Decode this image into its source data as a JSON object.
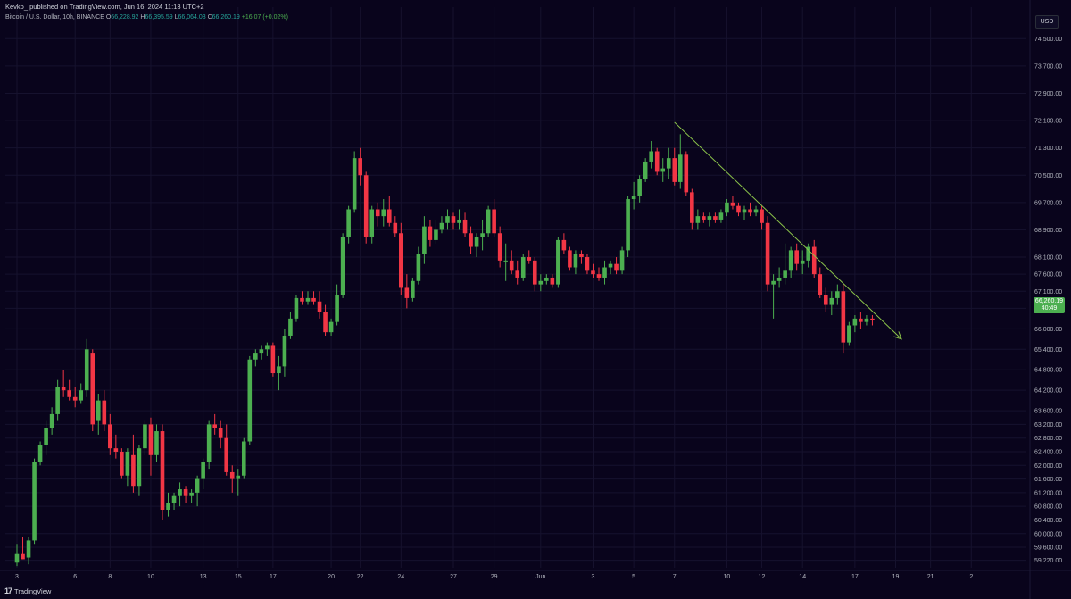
{
  "header": {
    "published": "Kevko_ published on TradingView.com, Jun 16, 2024 11:13 UTC+2",
    "symbol": "Bitcoin / U.S. Dollar, 10h, BINANCE",
    "o_label": "O",
    "o_value": "66,228.92",
    "h_label": "H",
    "h_value": "66,395.59",
    "l_label": "L",
    "l_value": "66,064.03",
    "c_label": "C",
    "c_value": "66,260.19",
    "change": "+16.07 (+0.02%)"
  },
  "currency": "USD",
  "last_price": {
    "value": "66,260.19",
    "countdown": "40:49"
  },
  "footer": {
    "brand": "TradingView",
    "logo": "tradingview-logo"
  },
  "colors": {
    "background": "#09041c",
    "up": "#4caf50",
    "down": "#f23645",
    "trendline": "#8bc34a",
    "grid": "#16122e"
  },
  "chart_data": {
    "type": "candlestick",
    "timeframe": "10h",
    "yscale": "linear",
    "ylim": [
      59000,
      74900
    ],
    "y_ticks": [
      59220,
      59600,
      60000,
      60400,
      60800,
      61200,
      61600,
      62000,
      62400,
      62800,
      63200,
      63600,
      64200,
      64800,
      65400,
      66000,
      66600,
      67100,
      67600,
      68100,
      68900,
      69700,
      70500,
      71300,
      72100,
      72900,
      73700,
      74500
    ],
    "y_tick_labels": [
      "59,220.00",
      "59,600.00",
      "60,000.00",
      "60,400.00",
      "60,800.00",
      "61,200.00",
      "61,600.00",
      "62,000.00",
      "62,400.00",
      "62,800.00",
      "63,200.00",
      "63,600.00",
      "64,200.00",
      "64,800.00",
      "65,400.00",
      "66,000.00",
      "66,600.00",
      "67,100.00",
      "67,600.00",
      "68,100.00",
      "68,900.00",
      "69,700.00",
      "70,500.00",
      "71,300.00",
      "72,100.00",
      "72,900.00",
      "73,700.00",
      "74,500.00"
    ],
    "x_ticks": [
      {
        "label": "3",
        "bar": 0
      },
      {
        "label": "6",
        "bar": 10
      },
      {
        "label": "8",
        "bar": 16
      },
      {
        "label": "10",
        "bar": 23
      },
      {
        "label": "13",
        "bar": 32
      },
      {
        "label": "15",
        "bar": 38
      },
      {
        "label": "17",
        "bar": 44
      },
      {
        "label": "20",
        "bar": 54
      },
      {
        "label": "22",
        "bar": 59
      },
      {
        "label": "24",
        "bar": 66
      },
      {
        "label": "27",
        "bar": 75
      },
      {
        "label": "29",
        "bar": 82
      },
      {
        "label": "Jun",
        "bar": 90
      },
      {
        "label": "3",
        "bar": 99
      },
      {
        "label": "5",
        "bar": 106
      },
      {
        "label": "7",
        "bar": 113
      },
      {
        "label": "10",
        "bar": 122
      },
      {
        "label": "12",
        "bar": 128
      },
      {
        "label": "14",
        "bar": 135
      },
      {
        "label": "17",
        "bar": 144
      },
      {
        "label": "19",
        "bar": 151
      },
      {
        "label": "21",
        "bar": 157
      },
      {
        "label": "2",
        "bar": 164
      }
    ],
    "ohlc": [
      [
        59150,
        59700,
        59050,
        59400
      ],
      [
        59400,
        59900,
        59250,
        59250
      ],
      [
        59300,
        59900,
        59100,
        59800
      ],
      [
        59800,
        62200,
        59700,
        62100
      ],
      [
        62100,
        62700,
        62000,
        62600
      ],
      [
        62600,
        63300,
        62300,
        63100
      ],
      [
        63100,
        63700,
        62900,
        63500
      ],
      [
        63500,
        64500,
        63300,
        64300
      ],
      [
        64300,
        64800,
        64000,
        64200
      ],
      [
        64200,
        64500,
        63900,
        64000
      ],
      [
        64000,
        64300,
        63700,
        63900
      ],
      [
        63900,
        64400,
        63800,
        64200
      ],
      [
        64200,
        65700,
        64000,
        65400
      ],
      [
        65300,
        65400,
        63000,
        63200
      ],
      [
        63300,
        64100,
        62900,
        63900
      ],
      [
        63900,
        64200,
        63000,
        63200
      ],
      [
        63200,
        63500,
        62300,
        62500
      ],
      [
        62500,
        62900,
        62200,
        62400
      ],
      [
        62400,
        62500,
        61600,
        61700
      ],
      [
        61700,
        62500,
        61400,
        62400
      ],
      [
        62300,
        62900,
        61200,
        61400
      ],
      [
        61400,
        62600,
        61100,
        62500
      ],
      [
        62500,
        63300,
        62300,
        63200
      ],
      [
        63200,
        63400,
        61700,
        62300
      ],
      [
        62300,
        63200,
        62100,
        63000
      ],
      [
        63000,
        63200,
        60400,
        60700
      ],
      [
        60700,
        61200,
        60500,
        60900
      ],
      [
        60900,
        61200,
        60700,
        61100
      ],
      [
        61100,
        61500,
        60800,
        61300
      ],
      [
        61300,
        61400,
        60900,
        61100
      ],
      [
        61100,
        61300,
        60900,
        61200
      ],
      [
        61200,
        61700,
        60800,
        61600
      ],
      [
        61600,
        62200,
        61300,
        62100
      ],
      [
        62100,
        63300,
        61900,
        63200
      ],
      [
        63200,
        63500,
        62900,
        63100
      ],
      [
        63100,
        63300,
        62500,
        62800
      ],
      [
        62800,
        63200,
        61700,
        61800
      ],
      [
        61800,
        62000,
        61200,
        61600
      ],
      [
        61600,
        61900,
        61100,
        61700
      ],
      [
        61700,
        62800,
        61600,
        62700
      ],
      [
        62700,
        65200,
        62600,
        65100
      ],
      [
        65100,
        65400,
        64900,
        65300
      ],
      [
        65300,
        65500,
        65100,
        65400
      ],
      [
        65400,
        65600,
        65200,
        65500
      ],
      [
        65500,
        65600,
        64600,
        64700
      ],
      [
        64700,
        65200,
        64200,
        64900
      ],
      [
        64900,
        66000,
        64600,
        65800
      ],
      [
        65800,
        66500,
        65700,
        66300
      ],
      [
        66300,
        67000,
        66200,
        66900
      ],
      [
        66900,
        67100,
        66700,
        66800
      ],
      [
        66800,
        67100,
        66700,
        66900
      ],
      [
        66900,
        67100,
        66700,
        66800
      ],
      [
        66800,
        67100,
        66300,
        66500
      ],
      [
        66500,
        66700,
        65800,
        65900
      ],
      [
        65900,
        66300,
        65800,
        66200
      ],
      [
        66200,
        67300,
        66100,
        67000
      ],
      [
        67000,
        68800,
        66900,
        68700
      ],
      [
        68700,
        69600,
        68500,
        69500
      ],
      [
        69500,
        71200,
        69400,
        71000
      ],
      [
        71000,
        71300,
        70200,
        70500
      ],
      [
        70500,
        70600,
        68500,
        68700
      ],
      [
        68700,
        69600,
        68500,
        69500
      ],
      [
        69500,
        69700,
        69000,
        69300
      ],
      [
        69300,
        69800,
        69000,
        69500
      ],
      [
        69500,
        69900,
        69000,
        69100
      ],
      [
        69100,
        69300,
        68700,
        68800
      ],
      [
        68800,
        69100,
        67000,
        67200
      ],
      [
        67200,
        67600,
        66600,
        66900
      ],
      [
        66900,
        67500,
        66800,
        67400
      ],
      [
        67400,
        68400,
        67300,
        68200
      ],
      [
        68200,
        69300,
        67900,
        69000
      ],
      [
        69000,
        69200,
        68400,
        68600
      ],
      [
        68600,
        69200,
        68500,
        68900
      ],
      [
        68900,
        69300,
        68800,
        69100
      ],
      [
        69100,
        69500,
        68900,
        69300
      ],
      [
        69300,
        69400,
        68900,
        69100
      ],
      [
        69100,
        69500,
        68900,
        69200
      ],
      [
        69200,
        69400,
        68700,
        68800
      ],
      [
        68800,
        69000,
        68200,
        68400
      ],
      [
        68400,
        68800,
        68100,
        68700
      ],
      [
        68700,
        69200,
        68300,
        68800
      ],
      [
        68800,
        69600,
        68700,
        69500
      ],
      [
        69500,
        69800,
        68700,
        68800
      ],
      [
        68800,
        69000,
        67800,
        68000
      ],
      [
        68000,
        68500,
        67400,
        68000
      ],
      [
        68000,
        68300,
        67600,
        67700
      ],
      [
        67700,
        68000,
        67300,
        67500
      ],
      [
        67500,
        68200,
        67400,
        68100
      ],
      [
        68100,
        68300,
        67900,
        68000
      ],
      [
        68000,
        68100,
        67100,
        67300
      ],
      [
        67300,
        67600,
        67100,
        67400
      ],
      [
        67400,
        67600,
        67300,
        67500
      ],
      [
        67500,
        67600,
        67200,
        67300
      ],
      [
        67300,
        68700,
        67200,
        68600
      ],
      [
        68600,
        68800,
        68200,
        68300
      ],
      [
        68300,
        68400,
        67700,
        67800
      ],
      [
        67800,
        68300,
        67600,
        68200
      ],
      [
        68200,
        68300,
        67900,
        68100
      ],
      [
        68100,
        68200,
        67600,
        67700
      ],
      [
        67700,
        67900,
        67500,
        67600
      ],
      [
        67600,
        67800,
        67400,
        67500
      ],
      [
        67500,
        68000,
        67300,
        67800
      ],
      [
        67800,
        68000,
        67600,
        67900
      ],
      [
        67900,
        68100,
        67600,
        67700
      ],
      [
        67700,
        68400,
        67600,
        68300
      ],
      [
        68300,
        69900,
        68100,
        69800
      ],
      [
        69800,
        70300,
        69500,
        69900
      ],
      [
        69900,
        70500,
        69700,
        70400
      ],
      [
        70400,
        71000,
        70300,
        70900
      ],
      [
        70900,
        71500,
        70700,
        71200
      ],
      [
        71200,
        71300,
        70500,
        70600
      ],
      [
        70600,
        71000,
        70300,
        70700
      ],
      [
        70700,
        71300,
        70400,
        71000
      ],
      [
        71000,
        71300,
        70200,
        70300
      ],
      [
        70300,
        71700,
        70100,
        71100
      ],
      [
        71100,
        71200,
        69900,
        70000
      ],
      [
        70000,
        70100,
        68900,
        69100
      ],
      [
        69100,
        69500,
        68900,
        69300
      ],
      [
        69300,
        69400,
        69100,
        69200
      ],
      [
        69200,
        69400,
        69000,
        69300
      ],
      [
        69300,
        69400,
        69100,
        69200
      ],
      [
        69200,
        69500,
        69100,
        69400
      ],
      [
        69400,
        69800,
        69300,
        69700
      ],
      [
        69700,
        69900,
        69500,
        69600
      ],
      [
        69600,
        69700,
        69300,
        69400
      ],
      [
        69400,
        69600,
        69200,
        69500
      ],
      [
        69500,
        69700,
        69300,
        69400
      ],
      [
        69400,
        69600,
        69300,
        69500
      ],
      [
        69500,
        69600,
        68900,
        69100
      ],
      [
        69100,
        69300,
        67100,
        67300
      ],
      [
        67300,
        67600,
        66300,
        67400
      ],
      [
        67400,
        67800,
        67200,
        67500
      ],
      [
        67500,
        68500,
        67300,
        67700
      ],
      [
        67700,
        68400,
        67500,
        68300
      ],
      [
        68300,
        68500,
        67700,
        67900
      ],
      [
        67900,
        68300,
        67600,
        68000
      ],
      [
        68000,
        68500,
        67800,
        68400
      ],
      [
        68400,
        68600,
        67500,
        67600
      ],
      [
        67600,
        67800,
        66900,
        67000
      ],
      [
        67000,
        67200,
        66500,
        66700
      ],
      [
        66700,
        67100,
        66400,
        66900
      ],
      [
        66900,
        67300,
        66700,
        67100
      ],
      [
        67100,
        67300,
        65300,
        65600
      ],
      [
        65600,
        66200,
        65500,
        66100
      ],
      [
        66100,
        66400,
        65900,
        66300
      ],
      [
        66300,
        66500,
        66000,
        66200
      ],
      [
        66200,
        66400,
        66100,
        66300
      ],
      [
        66300,
        66400,
        66100,
        66260
      ]
    ],
    "trendline": {
      "from": {
        "bar": 113,
        "price": 72050
      },
      "to": {
        "bar": 152,
        "price": 65700
      },
      "arrow": true
    },
    "last_price_line": 66260.19
  }
}
